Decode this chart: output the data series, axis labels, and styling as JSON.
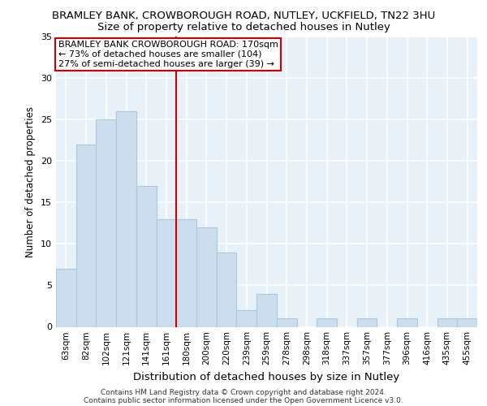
{
  "title1": "BRAMLEY BANK, CROWBOROUGH ROAD, NUTLEY, UCKFIELD, TN22 3HU",
  "title2": "Size of property relative to detached houses in Nutley",
  "xlabel": "Distribution of detached houses by size in Nutley",
  "ylabel": "Number of detached properties",
  "categories": [
    "63sqm",
    "82sqm",
    "102sqm",
    "121sqm",
    "141sqm",
    "161sqm",
    "180sqm",
    "200sqm",
    "220sqm",
    "239sqm",
    "259sqm",
    "278sqm",
    "298sqm",
    "318sqm",
    "337sqm",
    "357sqm",
    "377sqm",
    "396sqm",
    "416sqm",
    "435sqm",
    "455sqm"
  ],
  "values": [
    7,
    22,
    25,
    26,
    17,
    13,
    13,
    12,
    9,
    2,
    4,
    1,
    0,
    1,
    0,
    1,
    0,
    1,
    0,
    1,
    1
  ],
  "bar_color": "#ccdded",
  "bar_edgecolor": "#aac8e0",
  "reference_line_x": 5.5,
  "reference_label": "BRAMLEY BANK CROWBOROUGH ROAD: 170sqm\n← 73% of detached houses are smaller (104)\n27% of semi-detached houses are larger (39) →",
  "ylim": [
    0,
    35
  ],
  "yticks": [
    0,
    5,
    10,
    15,
    20,
    25,
    30,
    35
  ],
  "footer1": "Contains HM Land Registry data © Crown copyright and database right 2024.",
  "footer2": "Contains public sector information licensed under the Open Government Licence v3.0.",
  "bg_color": "#ffffff",
  "plot_bg_color": "#e8f0f8",
  "grid_color": "#ffffff",
  "ref_line_color": "#cc0000",
  "box_edgecolor": "#cc0000",
  "box_facecolor": "#ffffff",
  "title1_fontsize": 9.5,
  "title2_fontsize": 9.5,
  "xlabel_fontsize": 9.5,
  "ylabel_fontsize": 8.5,
  "tick_fontsize": 7.5,
  "ann_fontsize": 8.0,
  "footer_fontsize": 6.5
}
